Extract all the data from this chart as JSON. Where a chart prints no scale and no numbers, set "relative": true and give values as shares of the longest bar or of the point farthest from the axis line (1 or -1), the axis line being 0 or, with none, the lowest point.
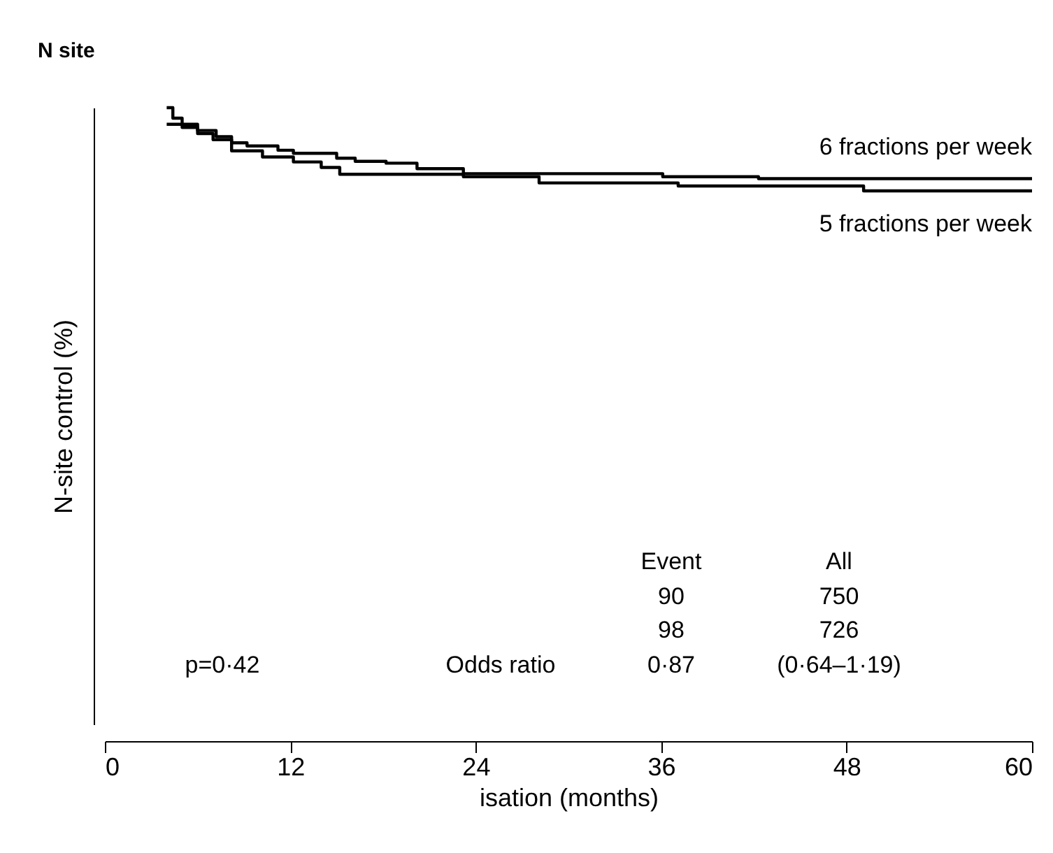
{
  "chart_data": {
    "type": "step",
    "title": "N site",
    "xlabel": "isation (months)",
    "ylabel": "N-site control (%)",
    "relative": true,
    "xlim": [
      0,
      60
    ],
    "xticks": [
      0,
      12,
      24,
      36,
      48,
      60
    ],
    "grid": false,
    "marker": "none",
    "line_style": "solid",
    "series": [
      {
        "name": "6 fractions per week",
        "color": "#000000",
        "x": [
          4.0,
          4.4,
          5.0,
          6.0,
          7.2,
          8.2,
          9.2,
          11.2,
          12.2,
          15.0,
          16.2,
          18.2,
          20.2,
          23.2,
          36.1,
          42.3,
          60
        ],
        "values": [
          1.0,
          0.983,
          0.973,
          0.963,
          0.953,
          0.943,
          0.938,
          0.931,
          0.926,
          0.918,
          0.913,
          0.91,
          0.901,
          0.893,
          0.888,
          0.885,
          0.885
        ]
      },
      {
        "name": "5 fractions per week",
        "color": "#000000",
        "x": [
          4.0,
          5.0,
          6.0,
          7.0,
          8.2,
          10.2,
          12.2,
          14.0,
          15.2,
          23.2,
          28.1,
          37.1,
          49.1,
          60
        ],
        "values": [
          0.973,
          0.968,
          0.958,
          0.948,
          0.93,
          0.92,
          0.912,
          0.903,
          0.892,
          0.888,
          0.878,
          0.873,
          0.865,
          0.865
        ]
      }
    ],
    "annotations": [
      "Event",
      "All",
      "90",
      "750",
      "98",
      "726",
      "p=0·42",
      "Odds ratio",
      "0·87",
      "(0·64–1·19)"
    ]
  }
}
